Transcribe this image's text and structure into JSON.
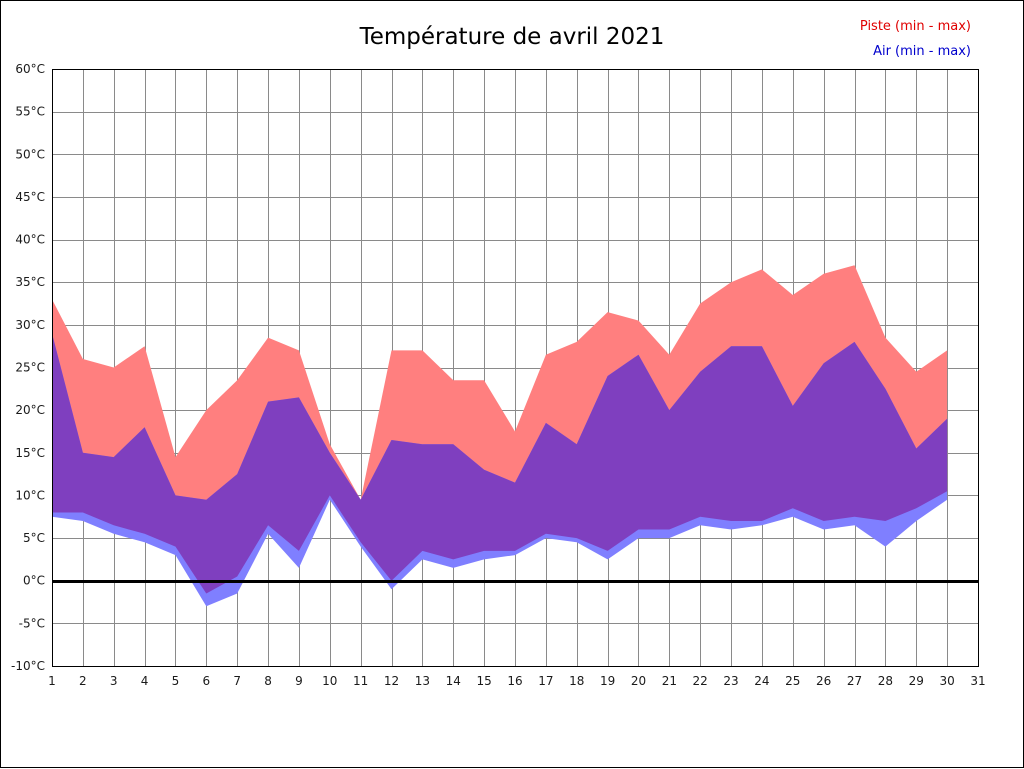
{
  "title": "Température de avril 2021",
  "legend": {
    "piste_label": "Piste (min - max)",
    "air_label": "Air (min - max)",
    "piste_color": "#e00000",
    "air_color": "#0000cc"
  },
  "colors": {
    "background": "#ffffff",
    "grid": "#8a8a8a",
    "plot_border": "#000000",
    "zero_line": "#000000",
    "axis_text": "#1a1a1a",
    "piste_fill": "#ff7f7f",
    "air_fill": "#7f7fff",
    "overlap_fill": "#7f3fbf"
  },
  "chart_data": {
    "type": "area",
    "title": "Température de avril 2021",
    "xlabel": "",
    "ylabel": "",
    "xlim": [
      1,
      31
    ],
    "ylim": [
      -10,
      60
    ],
    "grid": true,
    "legend_position": "top-right",
    "zero_line": 0,
    "x_ticks": [
      1,
      2,
      3,
      4,
      5,
      6,
      7,
      8,
      9,
      10,
      11,
      12,
      13,
      14,
      15,
      16,
      17,
      18,
      19,
      20,
      21,
      22,
      23,
      24,
      25,
      26,
      27,
      28,
      29,
      30,
      31
    ],
    "x_tick_labels": [
      "1",
      "2",
      "3",
      "4",
      "5",
      "6",
      "7",
      "8",
      "9",
      "10",
      "11",
      "12",
      "13",
      "14",
      "15",
      "16",
      "17",
      "18",
      "19",
      "20",
      "21",
      "22",
      "23",
      "24",
      "25",
      "26",
      "27",
      "28",
      "29",
      "30",
      "31"
    ],
    "y_ticks": [
      60,
      55,
      50,
      45,
      40,
      35,
      30,
      25,
      20,
      15,
      10,
      5,
      0,
      -5,
      -10
    ],
    "y_tick_labels": [
      "60°C",
      "55°C",
      "50°C",
      "45°C",
      "40°C",
      "35°C",
      "30°C",
      "25°C",
      "20°C",
      "15°C",
      "10°C",
      "5°C",
      "0°C",
      "-5°C",
      "-10°C"
    ],
    "days": [
      1,
      2,
      3,
      4,
      5,
      6,
      7,
      8,
      9,
      10,
      11,
      12,
      13,
      14,
      15,
      16,
      17,
      18,
      19,
      20,
      21,
      22,
      23,
      24,
      25,
      26,
      27,
      28,
      29,
      30
    ],
    "series": [
      {
        "id": "piste",
        "name": "Piste (min - max)",
        "color": "#ff0000",
        "min": [
          8,
          8,
          6.5,
          5.5,
          4,
          -1.5,
          0.5,
          6.5,
          3.5,
          10,
          4.5,
          0,
          3.5,
          2.5,
          3.5,
          3.5,
          5.5,
          5,
          3.5,
          6,
          6,
          7.5,
          7,
          7,
          8.5,
          7,
          7.5,
          7,
          8.5,
          10.5
        ],
        "max": [
          33,
          26,
          25,
          27.5,
          14.5,
          20,
          23.5,
          28.5,
          27,
          16,
          9.5,
          27,
          27,
          23.5,
          23.5,
          17.5,
          26.5,
          28,
          31.5,
          30.5,
          26.5,
          32.5,
          35,
          36.5,
          33.5,
          36,
          37,
          28.5,
          24.5,
          27
        ]
      },
      {
        "id": "air",
        "name": "Air (min - max)",
        "color": "#0000ff",
        "min": [
          7.5,
          7,
          5.5,
          4.5,
          3,
          -3,
          -1.5,
          5.5,
          1.5,
          9.5,
          4,
          -1,
          2.5,
          1.5,
          2.5,
          3,
          5,
          4.5,
          2.5,
          5,
          5,
          6.5,
          6,
          6.5,
          7.5,
          6,
          6.5,
          4,
          7,
          9.5
        ],
        "max": [
          29,
          15,
          14.5,
          18,
          10,
          9.5,
          12.5,
          21,
          21.5,
          15,
          9.5,
          16.5,
          16,
          16,
          13,
          11.5,
          18.5,
          16,
          24,
          26.5,
          20,
          24.5,
          27.5,
          27.5,
          20.5,
          25.5,
          28,
          22.5,
          15.5,
          19
        ]
      }
    ]
  }
}
